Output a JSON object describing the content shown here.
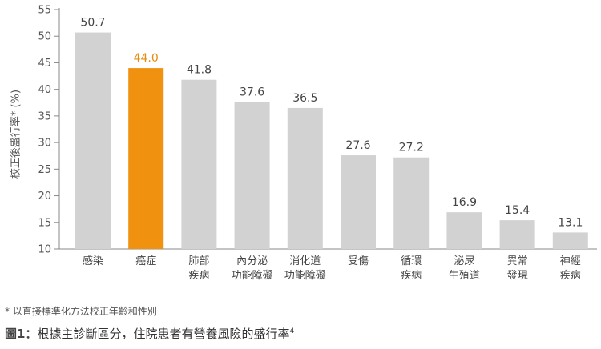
{
  "chart_data": {
    "type": "bar",
    "categories": [
      [
        "感染"
      ],
      [
        "癌症"
      ],
      [
        "肺部",
        "疾病"
      ],
      [
        "內分泌",
        "功能障礙"
      ],
      [
        "消化道",
        "功能障礙"
      ],
      [
        "受傷"
      ],
      [
        "循環",
        "疾病"
      ],
      [
        "泌尿",
        "生殖道"
      ],
      [
        "異常",
        "發現"
      ],
      [
        "神經",
        "疾病"
      ]
    ],
    "values": [
      50.7,
      44.0,
      41.8,
      37.6,
      36.5,
      27.6,
      27.2,
      16.9,
      15.4,
      13.1
    ],
    "value_labels": [
      "50.7",
      "44.0",
      "41.8",
      "37.6",
      "36.5",
      "27.6",
      "27.2",
      "16.9",
      "15.4",
      "13.1"
    ],
    "highlight_index": 1,
    "ylabel": "校正後盛行率* (%)",
    "ylim": [
      10,
      55
    ],
    "yticks": [
      10,
      15,
      20,
      25,
      30,
      35,
      40,
      45,
      50,
      55
    ],
    "grid": false,
    "colors": {
      "bar": "#d2d2d2",
      "highlight": "#f0910f",
      "value_text": "#444444",
      "highlight_text": "#e88a0c",
      "axis": "#888888"
    }
  },
  "footnote": "* 以直接標準化方法校正年齡和性別",
  "caption": {
    "figure": "圖1：",
    "text": "根據主診斷區分，住院患者有營養風險的盛行率",
    "ref": "4"
  }
}
